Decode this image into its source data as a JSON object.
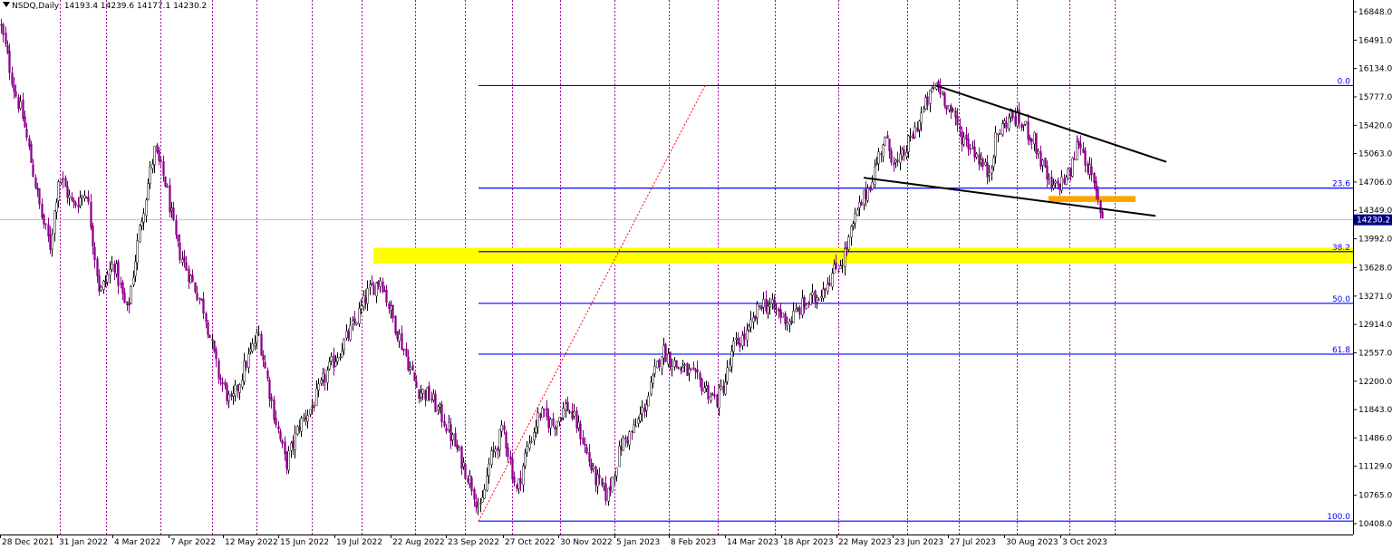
{
  "header": {
    "symbol": "NSDQ,Daily",
    "ohlc": "14193.4 14239.6 14177.1 14230.2"
  },
  "colors": {
    "background": "#ffffff",
    "candle_up": "#000000",
    "candle_down": "#8b008b",
    "fib_line": "#0000ff",
    "support_zone": "#ffff00",
    "breakout_zone": "#ffa500",
    "trendline": "#000000",
    "fib_diagonal": "#ff0000",
    "vertical_grid": "#a000a0",
    "price_marker": "#000080"
  },
  "chart_data": {
    "type": "candlestick",
    "title": "NSDQ,Daily",
    "ylim": [
      10408.0,
      16848.0
    ],
    "x_tick_labels": [
      "28 Dec 2021",
      "31 Jan 2022",
      "4 Mar 2022",
      "7 Apr 2022",
      "12 May 2022",
      "15 Jun 2022",
      "19 Jul 2022",
      "22 Aug 2022",
      "23 Sep 2022",
      "27 Oct 2022",
      "30 Nov 2022",
      "5 Jan 2023",
      "8 Feb 2023",
      "14 Mar 2023",
      "18 Apr 2023",
      "22 May 2023",
      "23 Jun 2023",
      "27 Jul 2023",
      "30 Aug 2023",
      "3 Oct 2023"
    ],
    "y_ticks": [
      16848.0,
      16491.0,
      16134.0,
      15777.0,
      15420.0,
      15063.0,
      14706.0,
      14349.0,
      13992.0,
      13628.0,
      13271.0,
      12914.0,
      12557.0,
      12200.0,
      11843.0,
      11486.0,
      11129.0,
      10765.0,
      10408.0
    ],
    "current_price": 14230.2,
    "path_points": [
      [
        0,
        16700
      ],
      [
        15,
        15900
      ],
      [
        25,
        15500
      ],
      [
        35,
        14900
      ],
      [
        45,
        14300
      ],
      [
        55,
        13900
      ],
      [
        65,
        14800
      ],
      [
        80,
        14400
      ],
      [
        95,
        14600
      ],
      [
        110,
        13300
      ],
      [
        125,
        13700
      ],
      [
        140,
        13050
      ],
      [
        155,
        14200
      ],
      [
        170,
        15100
      ],
      [
        182,
        14700
      ],
      [
        195,
        13900
      ],
      [
        210,
        13500
      ],
      [
        225,
        13100
      ],
      [
        240,
        12300
      ],
      [
        255,
        11900
      ],
      [
        270,
        12400
      ],
      [
        285,
        12800
      ],
      [
        300,
        11900
      ],
      [
        315,
        11150
      ],
      [
        330,
        11650
      ],
      [
        345,
        11900
      ],
      [
        360,
        12300
      ],
      [
        375,
        12600
      ],
      [
        390,
        12900
      ],
      [
        405,
        13300
      ],
      [
        420,
        13500
      ],
      [
        430,
        13100
      ],
      [
        445,
        12600
      ],
      [
        460,
        12100
      ],
      [
        475,
        12000
      ],
      [
        490,
        11700
      ],
      [
        505,
        11300
      ],
      [
        520,
        10900
      ],
      [
        530,
        10550
      ],
      [
        540,
        11200
      ],
      [
        555,
        11600
      ],
      [
        570,
        10800
      ],
      [
        580,
        11300
      ],
      [
        595,
        11800
      ],
      [
        610,
        11650
      ],
      [
        625,
        11900
      ],
      [
        640,
        11550
      ],
      [
        655,
        11000
      ],
      [
        670,
        10750
      ],
      [
        685,
        11400
      ],
      [
        700,
        11600
      ],
      [
        715,
        12000
      ],
      [
        730,
        12600
      ],
      [
        745,
        12400
      ],
      [
        760,
        12300
      ],
      [
        775,
        12150
      ],
      [
        790,
        11950
      ],
      [
        800,
        12200
      ],
      [
        810,
        12650
      ],
      [
        825,
        12800
      ],
      [
        840,
        13200
      ],
      [
        855,
        13100
      ],
      [
        870,
        12950
      ],
      [
        885,
        13150
      ],
      [
        900,
        13250
      ],
      [
        915,
        13500
      ],
      [
        930,
        13750
      ],
      [
        945,
        14300
      ],
      [
        960,
        14700
      ],
      [
        975,
        15250
      ],
      [
        990,
        14900
      ],
      [
        1005,
        15250
      ],
      [
        1020,
        15650
      ],
      [
        1033,
        15950
      ],
      [
        1045,
        15700
      ],
      [
        1060,
        15300
      ],
      [
        1075,
        15100
      ],
      [
        1090,
        14800
      ],
      [
        1100,
        15300
      ],
      [
        1115,
        15550
      ],
      [
        1130,
        15400
      ],
      [
        1140,
        15250
      ],
      [
        1150,
        14900
      ],
      [
        1160,
        14600
      ],
      [
        1170,
        14700
      ],
      [
        1180,
        14800
      ],
      [
        1190,
        15250
      ],
      [
        1200,
        14900
      ],
      [
        1210,
        14500
      ],
      [
        1218,
        14200
      ]
    ],
    "fibonacci": {
      "levels": [
        {
          "label": "0.0",
          "price": 15920
        },
        {
          "label": "23.6",
          "price": 14630
        },
        {
          "label": "38.2",
          "price": 13830
        },
        {
          "label": "50.0",
          "price": 13180
        },
        {
          "label": "61.8",
          "price": 12540
        },
        {
          "label": "100.0",
          "price": 10440
        }
      ],
      "diagonal": {
        "from_price": 10440,
        "to_price": 15920
      }
    },
    "zones": [
      {
        "name": "support",
        "from_price": 13680,
        "to_price": 13880
      },
      {
        "name": "breakout",
        "from_price": 14455,
        "to_price": 14530
      }
    ],
    "trendlines": [
      {
        "name": "upper",
        "from_price": 15920,
        "to_price": 14960
      },
      {
        "name": "lower",
        "from_price": 14760,
        "to_price": 14280
      }
    ]
  }
}
